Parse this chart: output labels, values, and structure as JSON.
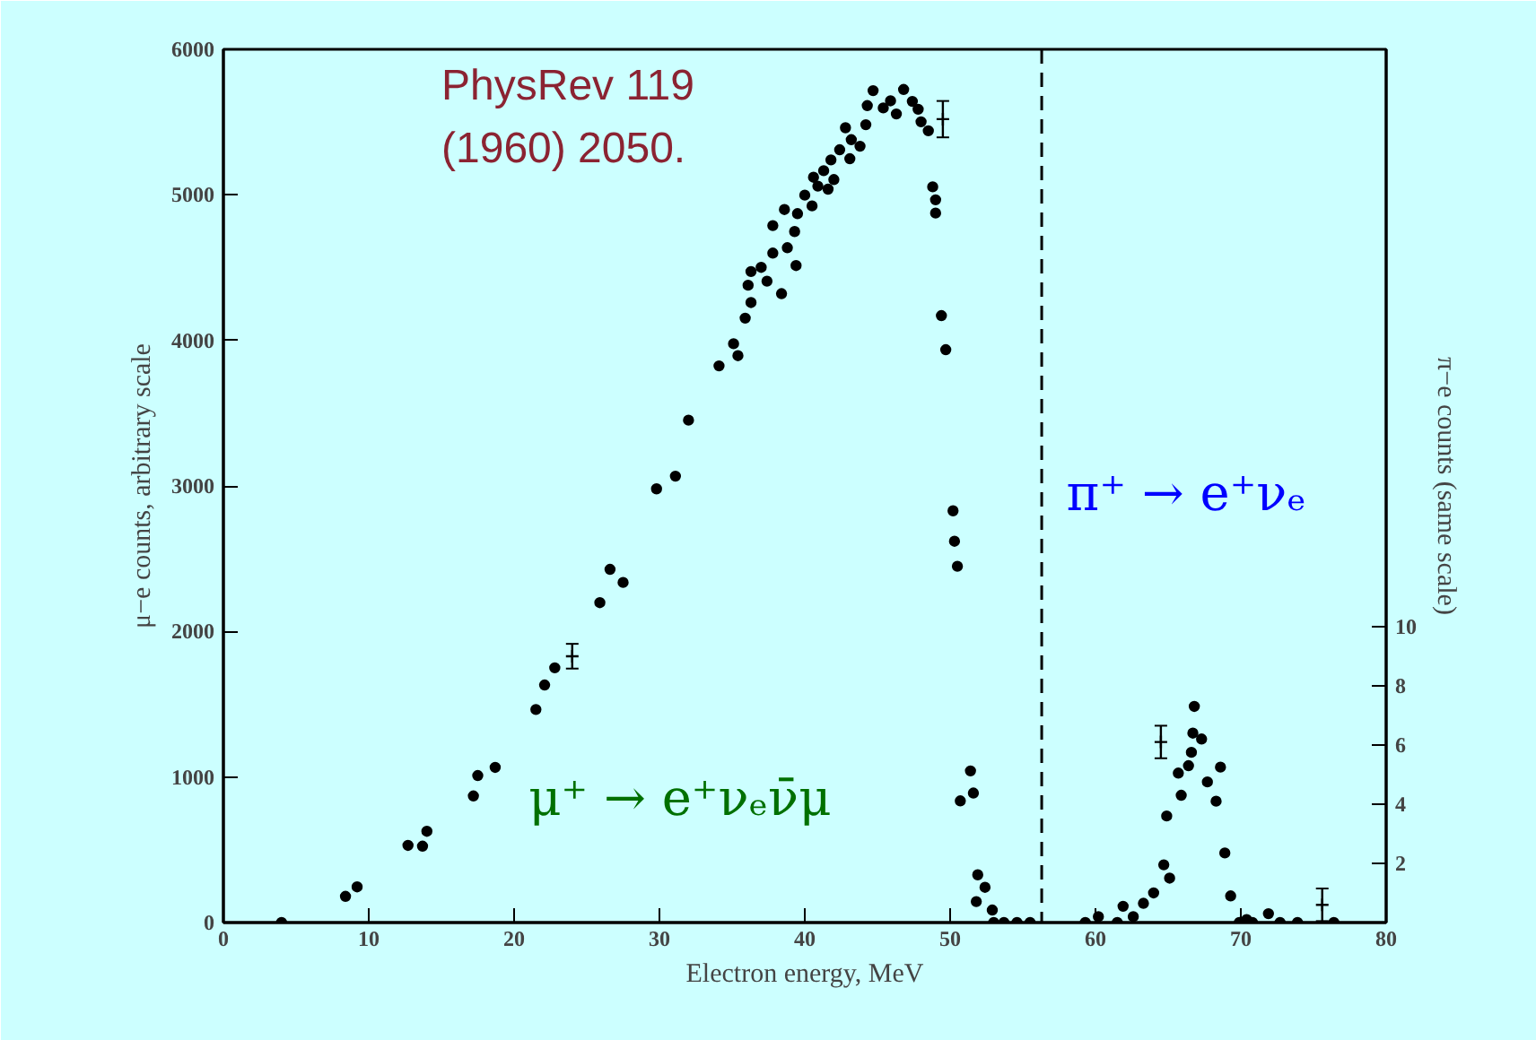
{
  "chart_data": {
    "type": "scatter",
    "xlabel": "Electron energy, MeV",
    "ylabel": "μ−e counts, arbitrary scale",
    "y2label": "π−e counts (same scale)",
    "xlim": [
      0,
      80
    ],
    "xticks": [
      0,
      10,
      20,
      30,
      40,
      50,
      60,
      70,
      80
    ],
    "ylim": [
      0,
      6000
    ],
    "yticks": [
      0,
      1000,
      2000,
      3000,
      4000,
      5000,
      6000
    ],
    "y2lim": [
      0,
      29.5
    ],
    "y2ticks": [
      2,
      4,
      6,
      8,
      10
    ],
    "grid": false,
    "marker": "circle",
    "series": [
      {
        "color": "#000000",
        "x": [
          4.0,
          8.4,
          9.2,
          12.7,
          13.7,
          14.0,
          17.2,
          17.5,
          18.7,
          21.5,
          22.1,
          22.8,
          25.9,
          26.6,
          27.5,
          29.8,
          31.1,
          32.0,
          34.1,
          35.1,
          35.4,
          35.9,
          36.3,
          36.1,
          36.3,
          37.0,
          37.4,
          38.4,
          37.8,
          37.8,
          38.8,
          39.3,
          39.4,
          38.6,
          39.5,
          40.0,
          40.5,
          40.6,
          40.9,
          41.3,
          41.6,
          41.8,
          42.0,
          42.4,
          43.1,
          42.8,
          43.2,
          43.8,
          44.2,
          44.3,
          44.7,
          45.4,
          45.9,
          46.3,
          46.8,
          47.4,
          47.8,
          48.0,
          48.5,
          48.8,
          49.0,
          49.0,
          49.4,
          49.7,
          50.2,
          50.3,
          50.5,
          51.4,
          50.7,
          51.6,
          51.9,
          52.4,
          51.8,
          52.9,
          53.0,
          53.7,
          54.6,
          55.5
        ],
        "values": [
          0,
          180,
          245,
          530,
          525,
          627,
          870,
          1010,
          1066,
          1464,
          1632,
          1750,
          2198,
          2427,
          2337,
          2980,
          3067,
          3452,
          3825,
          3977,
          3895,
          4153,
          4260,
          4379,
          4473,
          4502,
          4407,
          4321,
          4600,
          4789,
          4637,
          4748,
          4514,
          4899,
          4871,
          4998,
          4924,
          5121,
          5060,
          5166,
          5039,
          5240,
          5105,
          5310,
          5248,
          5461,
          5379,
          5334,
          5482,
          5613,
          5716,
          5597,
          5646,
          5556,
          5724,
          5642,
          5588,
          5502,
          5440,
          5055,
          4966,
          4875,
          4170,
          3936,
          2829,
          2620,
          2448,
          1042,
          836,
          890,
          328,
          242,
          144,
          86,
          0,
          0,
          0,
          0
        ]
      },
      {
        "color": "#000000",
        "marker": "cross",
        "x": [
          24.0,
          49.5
        ],
        "values": [
          1830,
          5520
        ],
        "errors": [
          85,
          125
        ]
      },
      {
        "color": "#000000",
        "axis": "y2",
        "x": [
          59.3,
          60.2,
          61.5,
          61.9,
          62.6,
          63.3,
          64.0,
          64.7,
          65.1,
          64.9,
          65.9,
          65.7,
          66.4,
          66.6,
          66.7,
          67.3,
          66.8,
          67.7,
          68.6,
          68.3,
          68.9,
          69.3,
          69.9,
          70.4,
          70.8,
          71.9,
          72.7,
          73.9,
          76.4
        ],
        "values": [
          0,
          0.2,
          0,
          0.55,
          0.2,
          0.65,
          1.0,
          1.95,
          1.5,
          3.6,
          4.3,
          5.05,
          5.3,
          5.75,
          6.4,
          6.2,
          7.3,
          4.75,
          5.25,
          4.1,
          2.35,
          0.9,
          0,
          0.1,
          0,
          0.3,
          0,
          0,
          0
        ]
      },
      {
        "color": "#000000",
        "axis": "y2",
        "marker": "cross",
        "x": [
          64.5,
          75.6
        ],
        "values": [
          6.1,
          0.6
        ],
        "errors": [
          0.55,
          0.55
        ]
      }
    ],
    "ref_lines": [
      {
        "axis": "x",
        "value": 56.3,
        "color": "#000000",
        "line_style": "dashed"
      }
    ],
    "annotations": [
      "PhysRev 119\n(1960) 2050.",
      "μ⁺ → e⁺νₑν̄μ",
      "π⁺ → e⁺νₑ"
    ]
  }
}
